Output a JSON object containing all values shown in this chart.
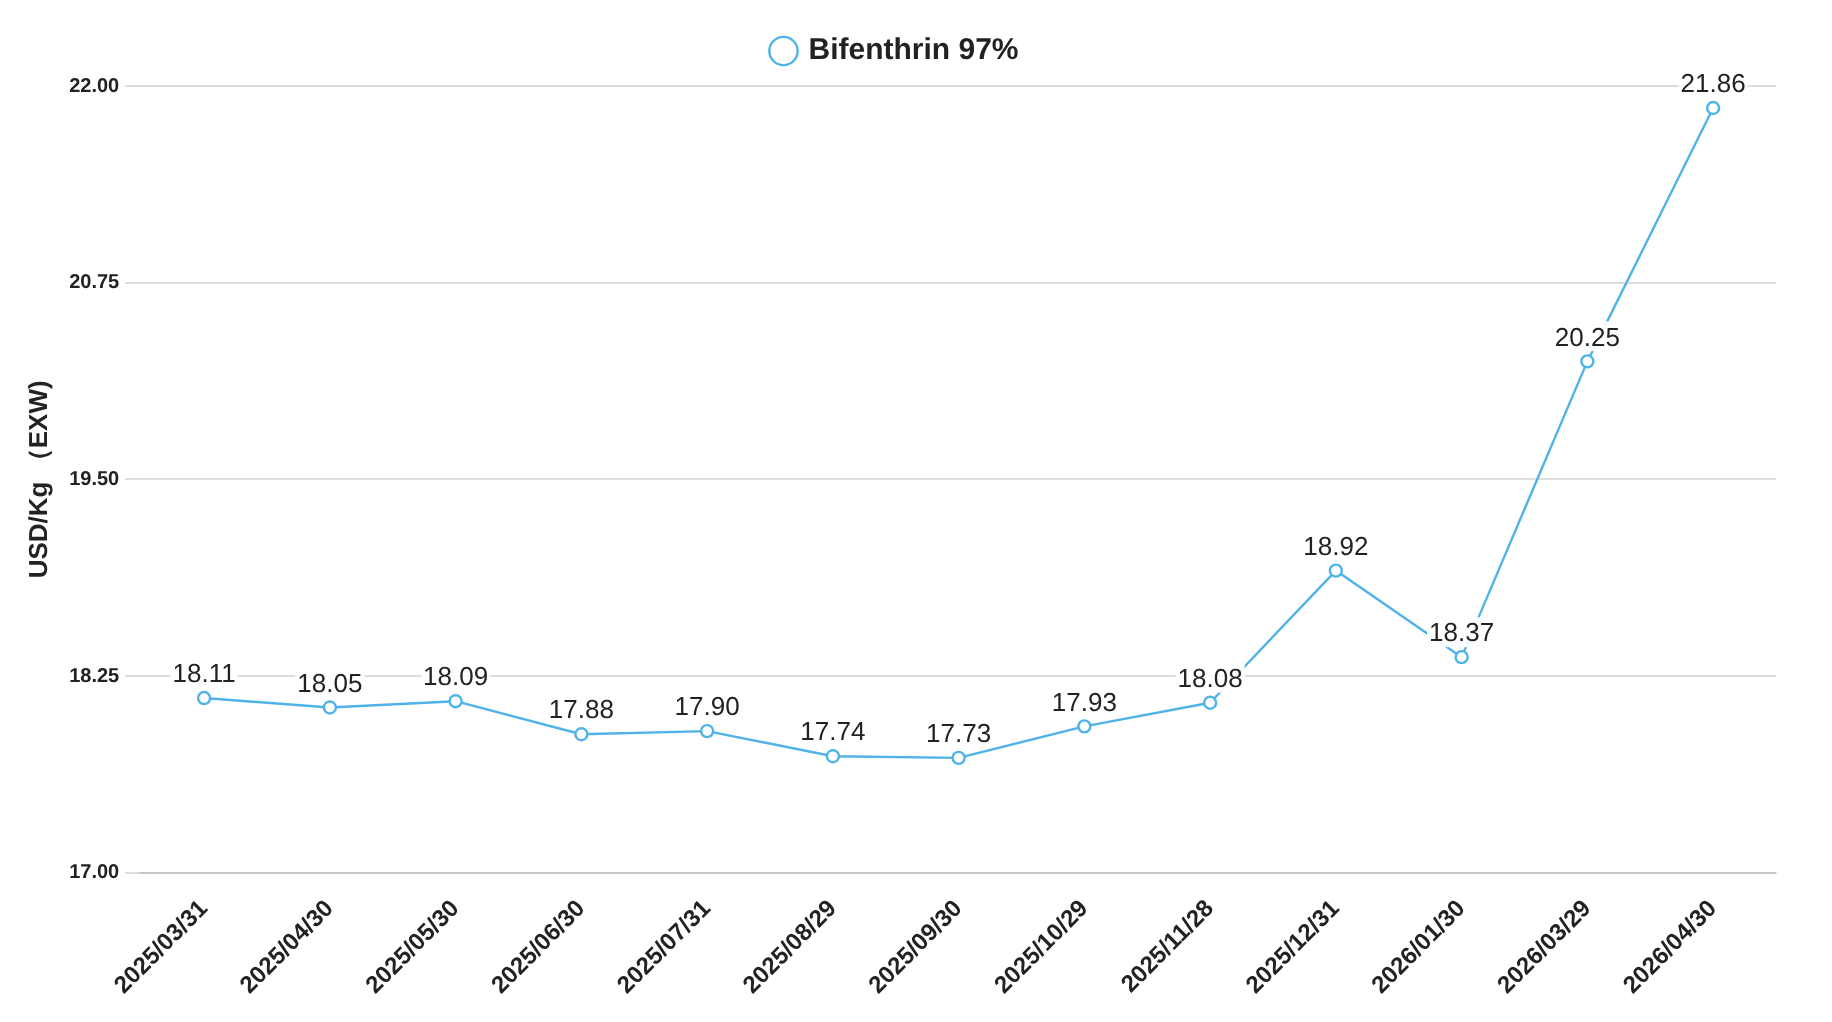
{
  "chart_data": {
    "type": "line",
    "ylabel": "USD/Kg （EXW)",
    "categories": [
      "2025/03/31",
      "2025/04/30",
      "2025/05/30",
      "2025/06/30",
      "2025/07/31",
      "2025/08/29",
      "2025/09/30",
      "2025/10/29",
      "2025/11/28",
      "2025/12/31",
      "2026/01/30",
      "2026/03/29",
      "2026/04/30"
    ],
    "series": [
      {
        "name": "Bifenthrin 97%",
        "color": "#4fb3e8",
        "values": [
          18.11,
          18.05,
          18.09,
          17.88,
          17.9,
          17.74,
          17.73,
          17.93,
          18.08,
          18.92,
          18.37,
          20.25,
          21.86
        ],
        "value_labels": [
          "18.11",
          "18.05",
          "18.09",
          "17.88",
          "17.90",
          "17.74",
          "17.73",
          "17.93",
          "18.08",
          "18.92",
          "18.37",
          "20.25",
          "21.86"
        ]
      }
    ],
    "ylim": [
      17,
      22
    ],
    "yticks": [
      {
        "value": 17,
        "label": "17.00"
      },
      {
        "value": 18.25,
        "label": "18.25"
      },
      {
        "value": 19.5,
        "label": "19.50"
      },
      {
        "value": 20.75,
        "label": "20.75"
      },
      {
        "value": 22,
        "label": "22.00"
      }
    ],
    "grid": "y",
    "legend": "top",
    "marker": "circle"
  }
}
